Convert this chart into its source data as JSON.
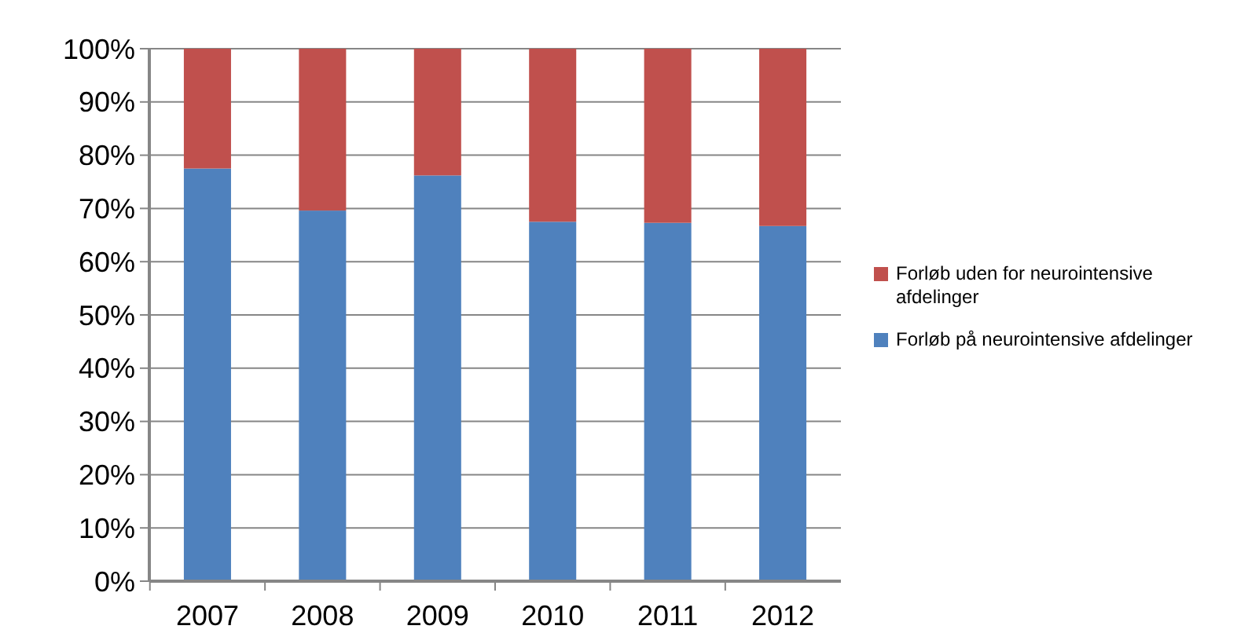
{
  "chart_data": {
    "type": "bar",
    "stacked": true,
    "categories": [
      "2007",
      "2008",
      "2009",
      "2010",
      "2011",
      "2012"
    ],
    "series": [
      {
        "name": "Forløb på neurointensive afdelinger",
        "color": "#4f81bd",
        "values": [
          77.5,
          69.6,
          76.2,
          67.5,
          67.3,
          66.7
        ]
      },
      {
        "name": "Forløb uden for neurointensive afdelinger",
        "color": "#c0504d",
        "values": [
          22.5,
          30.4,
          23.8,
          32.5,
          32.7,
          33.3
        ]
      }
    ],
    "ylim": [
      0,
      100
    ],
    "yticks": [
      {
        "value": 0,
        "label": "0%"
      },
      {
        "value": 10,
        "label": "10%"
      },
      {
        "value": 20,
        "label": "20%"
      },
      {
        "value": 30,
        "label": "30%"
      },
      {
        "value": 40,
        "label": "40%"
      },
      {
        "value": 50,
        "label": "50%"
      },
      {
        "value": 60,
        "label": "60%"
      },
      {
        "value": 70,
        "label": "70%"
      },
      {
        "value": 80,
        "label": "80%"
      },
      {
        "value": 90,
        "label": "90%"
      },
      {
        "value": 100,
        "label": "100%"
      }
    ],
    "grid": "y",
    "legend": "right"
  }
}
